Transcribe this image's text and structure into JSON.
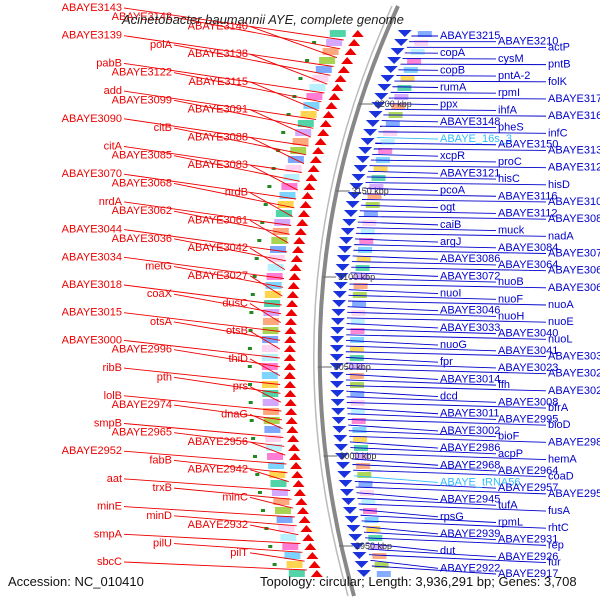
{
  "title": "Acinetobacter baumannii AYE, complete genome",
  "footer": {
    "accession": "Accession: NC_010410",
    "summary": "Topology: circular; Length: 3,936,291 bp; Genes: 3,708"
  },
  "colors": {
    "left_label": "#ee0000",
    "right_label": "#0000cc",
    "rna_label": "#33bbff",
    "ring": "#888888",
    "forward_feature": "#ee0000",
    "reverse_feature": "#1a33dd",
    "tick": "#228822"
  },
  "scale_ticks": [
    "3200 kbp",
    "3150 kbp",
    "3100 kbp",
    "3050 kbp",
    "3000 kbp",
    "2950 kbp"
  ],
  "left_labels": [
    "ABAYE3143",
    "ABAYE3142",
    "ABAYE3140",
    "ABAYE3139",
    "polA",
    "ABAYE3138",
    "pabB",
    "ABAYE3122",
    "ABAYE3115",
    "add",
    "ABAYE3099",
    "ABAYE3091",
    "ABAYE3090",
    "citB",
    "ABAYE3088",
    "citA",
    "ABAYE3085",
    "ABAYE3083",
    "ABAYE3070",
    "ABAYE3068",
    "nrdB",
    "nrdA",
    "ABAYE3062",
    "ABAYE3061",
    "ABAYE3044",
    "ABAYE3036",
    "ABAYE3042",
    "ABAYE3034",
    "metG",
    "ABAYE3027",
    "ABAYE3018",
    "coaX",
    "dusC",
    "ABAYE3015",
    "otsA",
    "otsB",
    "ABAYE3000",
    "ABAYE2996",
    "thiD",
    "ribB",
    "pth",
    "prs",
    "lolB",
    "ABAYE2974",
    "dnaG",
    "smpB",
    "ABAYE2965",
    "ABAYE2956",
    "ABAYE2952",
    "fabB",
    "ABAYE2942",
    "aat",
    "trxB",
    "minC",
    "minE",
    "minD",
    "ABAYE2932",
    "smpA",
    "pilU",
    "pilT",
    "sbcC"
  ],
  "right_labels": [
    "ABAYE3215",
    "ABAYE3210",
    "actP",
    "copA",
    "cysM",
    "pntB",
    "copB",
    "pntA-2",
    "folK",
    "rumA",
    "rpmI",
    "ABAYE3171",
    "ppx",
    "ihfA",
    "ABAYE3167",
    "ABAYE3148",
    "pheS",
    "infC",
    "ABAYE_16s_3",
    "ABAYE3150",
    "ABAYE3135",
    "xcpR",
    "proC",
    "ABAYE3127",
    "ABAYE3121",
    "hisC",
    "hisD",
    "pcoA",
    "ABAYE3116",
    "ABAYE3100",
    "ogt",
    "ABAYE3112",
    "ABAYE3087",
    "caiB",
    "muck",
    "nadA",
    "argJ",
    "ABAYE3084",
    "ABAYE3076",
    "ABAYE3086",
    "ABAYE3064",
    "ABAYE3069",
    "ABAYE3072",
    "nuoB",
    "ABAYE3063",
    "nuoI",
    "nuoF",
    "nuoA",
    "ABAYE3046",
    "nuoH",
    "nuoE",
    "ABAYE3033",
    "ABAYE3040",
    "nuoL",
    "nuoG",
    "ABAYE3041",
    "ABAYE3030",
    "fpr",
    "ABAYE3023",
    "ABAYE3029",
    "ABAYE3014",
    "ffh",
    "ABAYE3020",
    "dcd",
    "ABAYE3008",
    "bfrA",
    "ABAYE3011",
    "ABAYE2995",
    "bioD",
    "ABAYE3002",
    "bioF",
    "ABAYE2985",
    "ABAYE2986",
    "acpP",
    "hemA",
    "ABAYE2968",
    "ABAYE2964",
    "coaD",
    "ABAYE_tRNA56",
    "ABAYE2957",
    "ABAYE2950",
    "ABAYE2945",
    "tufA",
    "fusA",
    "rpsG",
    "rpmL",
    "rhtC",
    "ABAYE2939",
    "ABAYE2931",
    "rep",
    "dut",
    "ABAYE2926",
    "fur",
    "ABAYE2922",
    "ABAYE2917"
  ]
}
